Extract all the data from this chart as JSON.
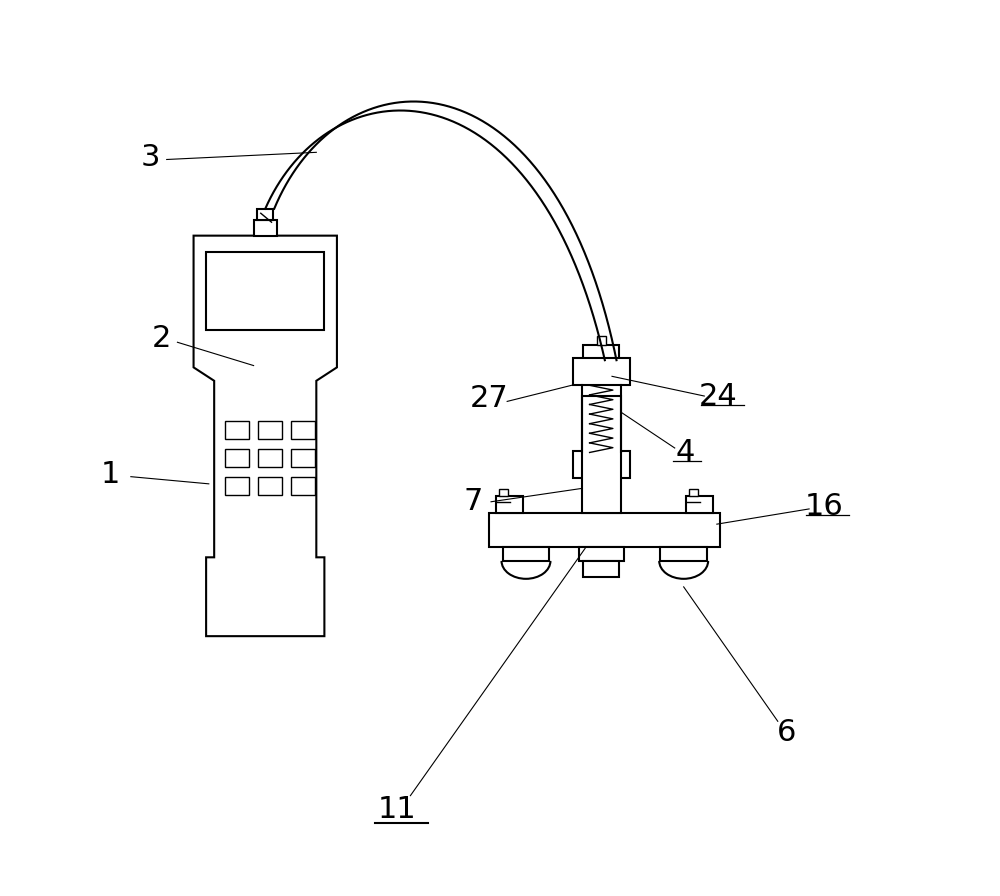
{
  "bg_color": "#ffffff",
  "line_color": "#000000",
  "line_width": 1.5,
  "fig_width": 10.0,
  "fig_height": 8.96
}
